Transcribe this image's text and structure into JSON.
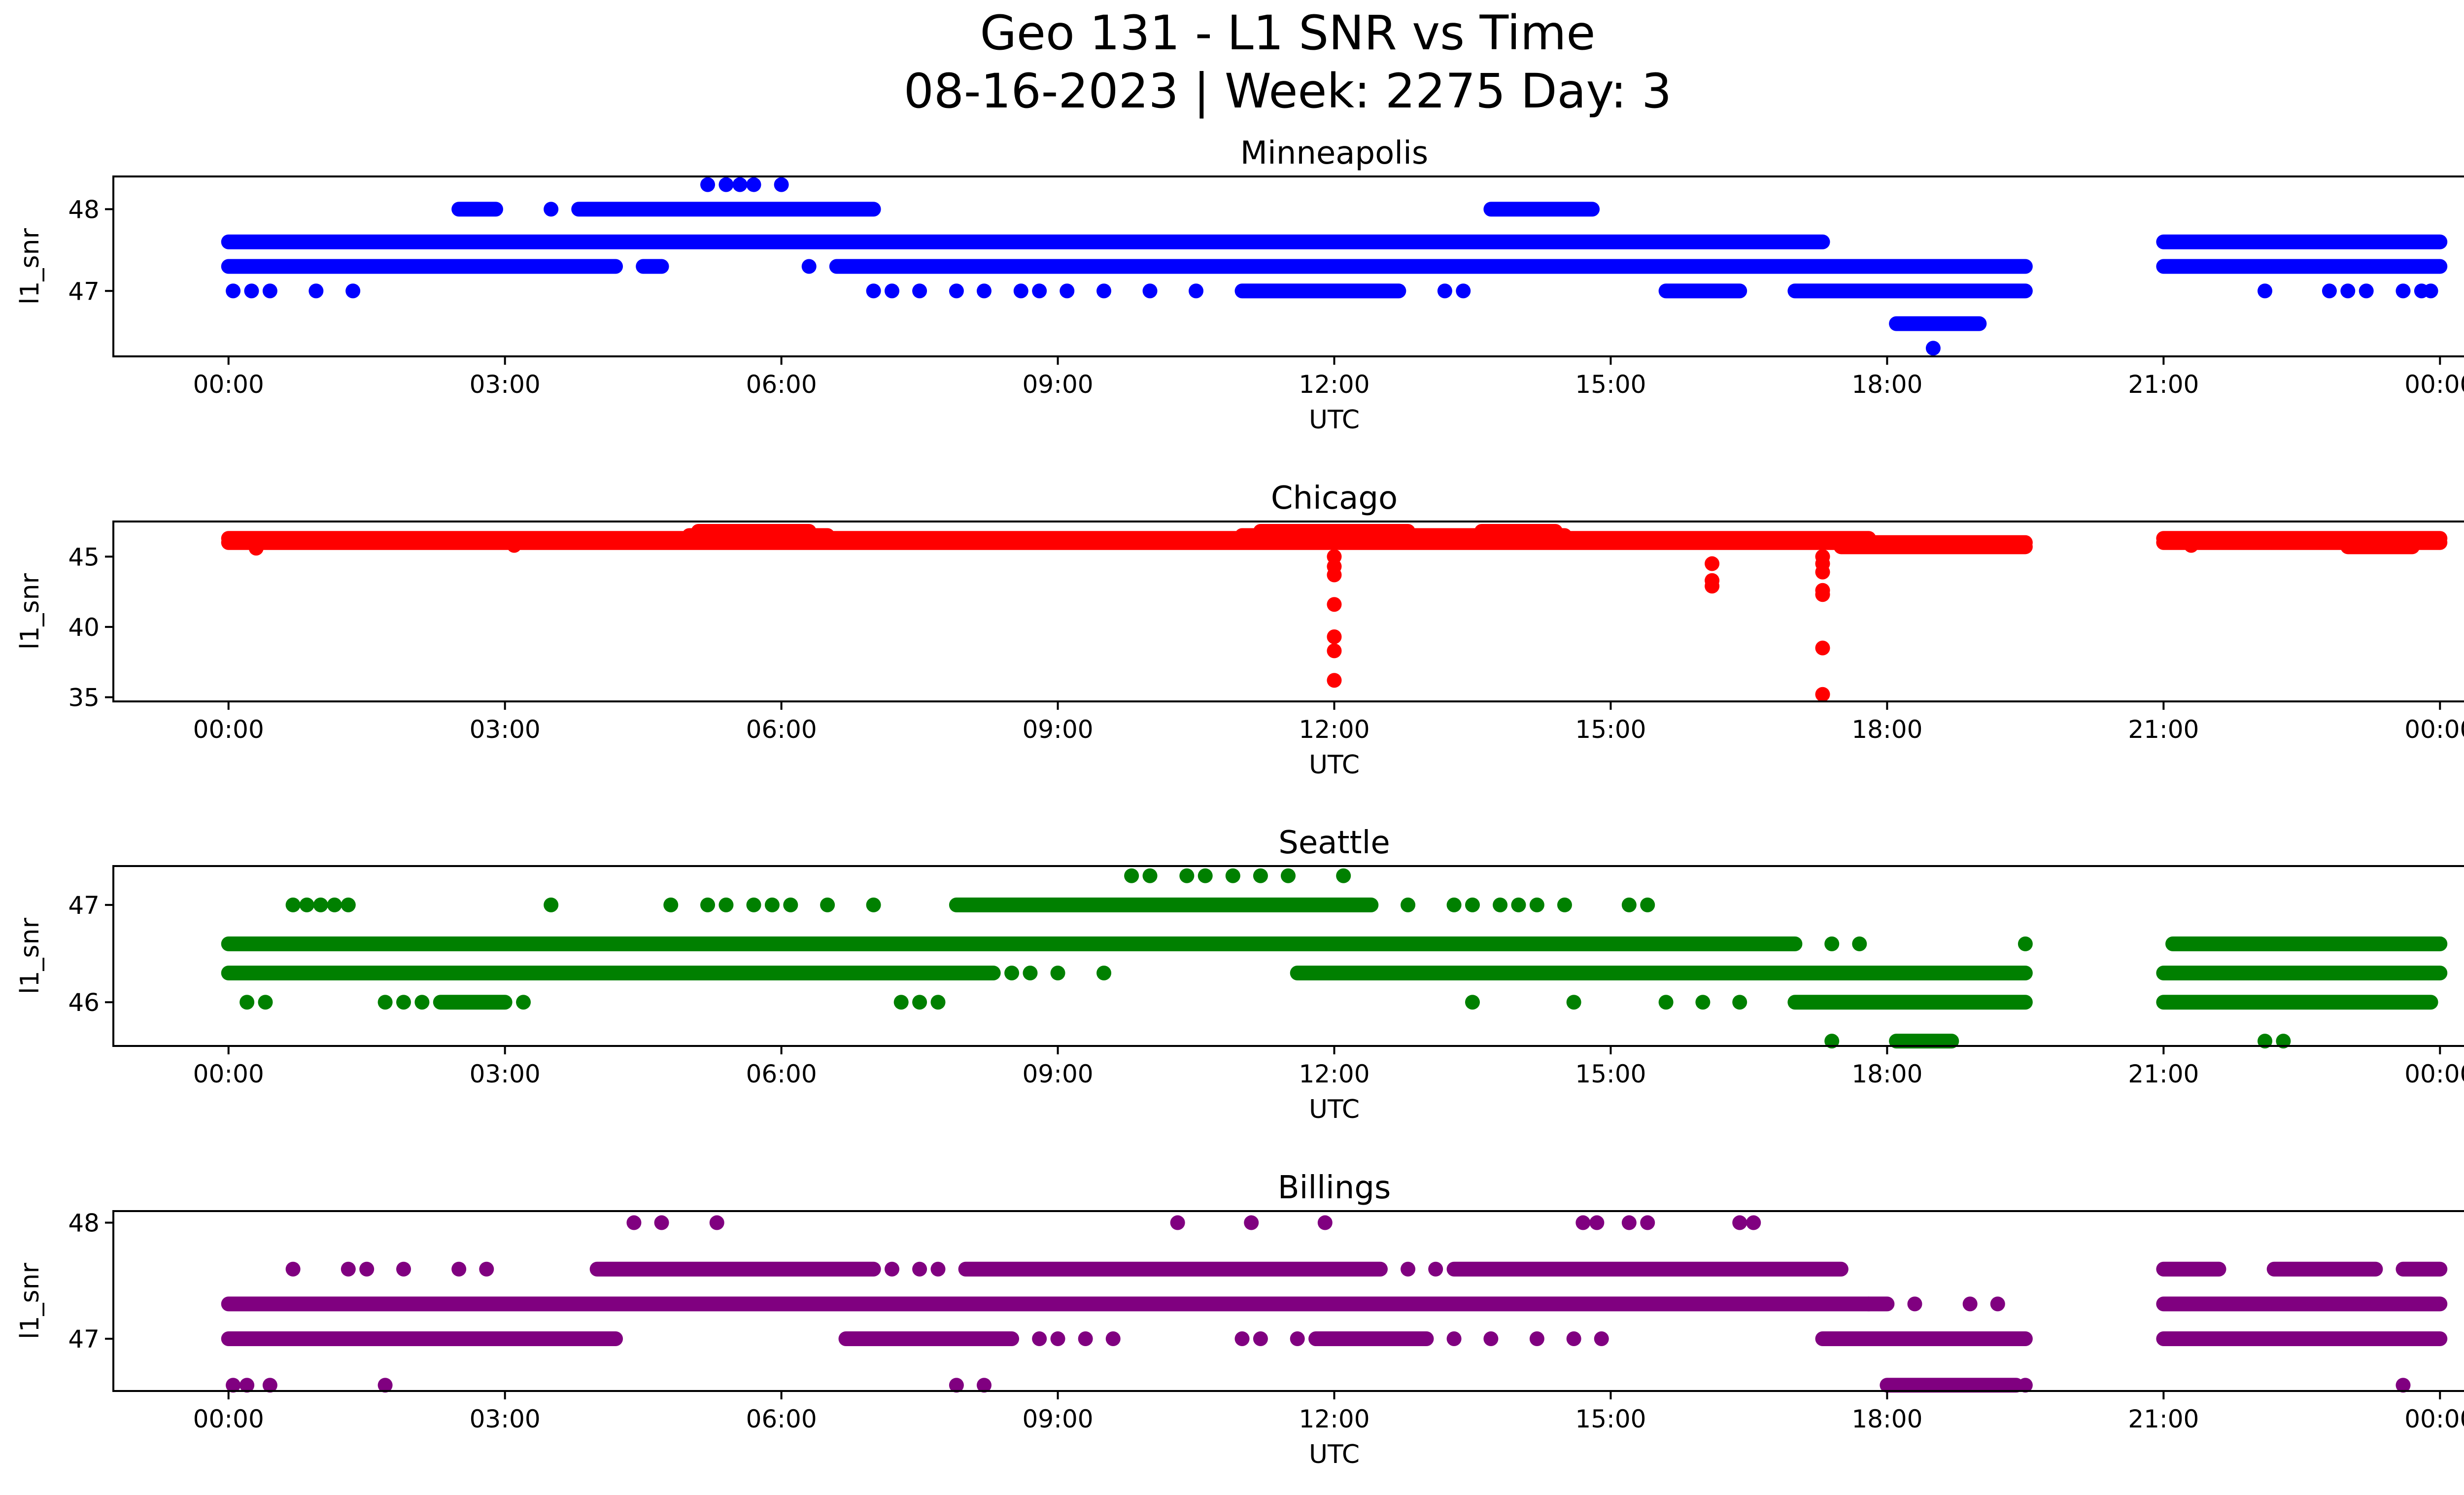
{
  "title_line1": "Geo 131 - L1 SNR vs Time",
  "title_line2": "08-16-2023 | Week: 2275 Day: 3",
  "chart_data": [
    {
      "type": "scatter",
      "title": "Minneapolis",
      "xlabel": "UTC",
      "ylabel": "l1_snr",
      "color": "#0000ff",
      "xlim": [
        -1.25,
        25.25
      ],
      "ylim": [
        46.2,
        48.4
      ],
      "yticks": [
        47,
        48
      ],
      "xticks": [
        "00:00",
        "03:00",
        "06:00",
        "09:00",
        "12:00",
        "15:00",
        "18:00",
        "21:00",
        "00:00"
      ],
      "xtick_values": [
        0,
        3,
        6,
        9,
        12,
        15,
        18,
        21,
        24
      ],
      "bands": [
        {
          "y": 47.6,
          "segments": [
            [
              0,
              17.3
            ],
            [
              21,
              24
            ]
          ]
        },
        {
          "y": 47.3,
          "segments": [
            [
              0,
              4.2
            ],
            [
              4.5,
              4.7
            ],
            [
              6.6,
              19.5
            ],
            [
              21,
              24
            ]
          ]
        },
        {
          "y": 47.0,
          "segments": [
            [
              11.0,
              12.7
            ],
            [
              15.6,
              16.4
            ],
            [
              17.0,
              19.5
            ]
          ]
        },
        {
          "y": 48.0,
          "segments": [
            [
              2.5,
              2.9
            ],
            [
              3.8,
              7.0
            ],
            [
              13.7,
              14.8
            ]
          ]
        },
        {
          "y": 46.6,
          "segments": [
            [
              18.1,
              19.0
            ]
          ]
        }
      ],
      "points": [
        {
          "x": 0.05,
          "y": 47.0
        },
        {
          "x": 0.25,
          "y": 47.0
        },
        {
          "x": 0.45,
          "y": 47.0
        },
        {
          "x": 0.95,
          "y": 47.0
        },
        {
          "x": 1.35,
          "y": 47.0
        },
        {
          "x": 3.5,
          "y": 48.0
        },
        {
          "x": 6.3,
          "y": 47.3
        },
        {
          "x": 7.0,
          "y": 47.0
        },
        {
          "x": 7.2,
          "y": 47.0
        },
        {
          "x": 7.5,
          "y": 47.0
        },
        {
          "x": 7.9,
          "y": 47.0
        },
        {
          "x": 8.2,
          "y": 47.0
        },
        {
          "x": 8.6,
          "y": 47.0
        },
        {
          "x": 8.8,
          "y": 47.0
        },
        {
          "x": 9.1,
          "y": 47.0
        },
        {
          "x": 9.5,
          "y": 47.0
        },
        {
          "x": 10.0,
          "y": 47.0
        },
        {
          "x": 10.5,
          "y": 47.0
        },
        {
          "x": 13.2,
          "y": 47.0
        },
        {
          "x": 13.4,
          "y": 47.0
        },
        {
          "x": 5.2,
          "y": 48.3
        },
        {
          "x": 5.4,
          "y": 48.3
        },
        {
          "x": 5.55,
          "y": 48.3
        },
        {
          "x": 5.7,
          "y": 48.3
        },
        {
          "x": 6.0,
          "y": 48.3
        },
        {
          "x": 18.5,
          "y": 46.3
        },
        {
          "x": 22.1,
          "y": 47.0
        },
        {
          "x": 22.8,
          "y": 47.0
        },
        {
          "x": 23.0,
          "y": 47.0
        },
        {
          "x": 23.2,
          "y": 47.0
        },
        {
          "x": 23.6,
          "y": 47.0
        },
        {
          "x": 23.8,
          "y": 47.0
        },
        {
          "x": 23.9,
          "y": 47.0
        }
      ]
    },
    {
      "type": "scatter",
      "title": "Chicago",
      "xlabel": "UTC",
      "ylabel": "l1_snr",
      "color": "#ff0000",
      "xlim": [
        -1.25,
        25.25
      ],
      "ylim": [
        34.7,
        47.5
      ],
      "yticks": [
        35,
        40,
        45
      ],
      "xticks": [
        "00:00",
        "03:00",
        "06:00",
        "09:00",
        "12:00",
        "15:00",
        "18:00",
        "21:00",
        "00:00"
      ],
      "xtick_values": [
        0,
        3,
        6,
        9,
        12,
        15,
        18,
        21,
        24
      ],
      "bands": [
        {
          "y": 46.5,
          "segments": [
            [
              5.0,
              6.5
            ],
            [
              11.0,
              14.5
            ]
          ]
        },
        {
          "y": 46.3,
          "segments": [
            [
              0,
              17.8
            ],
            [
              21,
              24
            ]
          ]
        },
        {
          "y": 46.0,
          "segments": [
            [
              0,
              19.5
            ],
            [
              21,
              24
            ]
          ]
        },
        {
          "y": 45.7,
          "segments": [
            [
              17.5,
              19.5
            ],
            [
              23.0,
              23.7
            ]
          ]
        },
        {
          "y": 46.8,
          "segments": [
            [
              5.1,
              6.3
            ],
            [
              11.2,
              12.8
            ],
            [
              13.6,
              14.4
            ]
          ]
        }
      ],
      "points": [
        {
          "x": 12.0,
          "y": 45.0
        },
        {
          "x": 12.0,
          "y": 44.3
        },
        {
          "x": 12.0,
          "y": 43.7
        },
        {
          "x": 12.0,
          "y": 41.6
        },
        {
          "x": 12.0,
          "y": 39.3
        },
        {
          "x": 12.0,
          "y": 38.3
        },
        {
          "x": 12.0,
          "y": 36.2
        },
        {
          "x": 16.1,
          "y": 44.5
        },
        {
          "x": 16.1,
          "y": 43.3
        },
        {
          "x": 16.1,
          "y": 42.9
        },
        {
          "x": 17.3,
          "y": 45.0
        },
        {
          "x": 17.3,
          "y": 44.5
        },
        {
          "x": 17.3,
          "y": 43.9
        },
        {
          "x": 17.3,
          "y": 42.6
        },
        {
          "x": 17.3,
          "y": 42.3
        },
        {
          "x": 17.3,
          "y": 38.5
        },
        {
          "x": 17.3,
          "y": 35.2
        },
        {
          "x": 0.3,
          "y": 45.6
        },
        {
          "x": 3.1,
          "y": 45.8
        },
        {
          "x": 21.3,
          "y": 45.8
        }
      ]
    },
    {
      "type": "scatter",
      "title": "Seattle",
      "xlabel": "UTC",
      "ylabel": "l1_snr",
      "color": "#008000",
      "xlim": [
        -1.25,
        25.25
      ],
      "ylim": [
        45.55,
        47.4
      ],
      "yticks": [
        46,
        47
      ],
      "xticks": [
        "00:00",
        "03:00",
        "06:00",
        "09:00",
        "12:00",
        "15:00",
        "18:00",
        "21:00",
        "00:00"
      ],
      "xtick_values": [
        0,
        3,
        6,
        9,
        12,
        15,
        18,
        21,
        24
      ],
      "bands": [
        {
          "y": 46.6,
          "segments": [
            [
              0,
              17.0
            ],
            [
              21.1,
              24
            ]
          ]
        },
        {
          "y": 46.3,
          "segments": [
            [
              0,
              8.3
            ],
            [
              11.6,
              19.5
            ],
            [
              21,
              24
            ]
          ]
        },
        {
          "y": 47.0,
          "segments": [
            [
              7.9,
              12.4
            ]
          ]
        },
        {
          "y": 46.0,
          "segments": [
            [
              2.3,
              3.0
            ],
            [
              17.0,
              19.5
            ],
            [
              21,
              23.9
            ]
          ]
        },
        {
          "y": 45.6,
          "segments": [
            [
              18.1,
              18.7
            ]
          ]
        }
      ],
      "points": [
        {
          "x": 0.7,
          "y": 47.0
        },
        {
          "x": 0.85,
          "y": 47.0
        },
        {
          "x": 1.0,
          "y": 47.0
        },
        {
          "x": 1.15,
          "y": 47.0
        },
        {
          "x": 1.3,
          "y": 47.0
        },
        {
          "x": 3.5,
          "y": 47.0
        },
        {
          "x": 4.8,
          "y": 47.0
        },
        {
          "x": 5.2,
          "y": 47.0
        },
        {
          "x": 5.4,
          "y": 47.0
        },
        {
          "x": 5.7,
          "y": 47.0
        },
        {
          "x": 5.9,
          "y": 47.0
        },
        {
          "x": 6.1,
          "y": 47.0
        },
        {
          "x": 6.5,
          "y": 47.0
        },
        {
          "x": 7.0,
          "y": 47.0
        },
        {
          "x": 12.8,
          "y": 47.0
        },
        {
          "x": 13.3,
          "y": 47.0
        },
        {
          "x": 13.5,
          "y": 47.0
        },
        {
          "x": 13.8,
          "y": 47.0
        },
        {
          "x": 14.0,
          "y": 47.0
        },
        {
          "x": 14.2,
          "y": 47.0
        },
        {
          "x": 14.5,
          "y": 47.0
        },
        {
          "x": 15.2,
          "y": 47.0
        },
        {
          "x": 15.4,
          "y": 47.0
        },
        {
          "x": 9.8,
          "y": 47.3
        },
        {
          "x": 10.0,
          "y": 47.3
        },
        {
          "x": 10.4,
          "y": 47.3
        },
        {
          "x": 10.6,
          "y": 47.3
        },
        {
          "x": 10.9,
          "y": 47.3
        },
        {
          "x": 11.2,
          "y": 47.3
        },
        {
          "x": 11.5,
          "y": 47.3
        },
        {
          "x": 12.1,
          "y": 47.3
        },
        {
          "x": 8.5,
          "y": 46.3
        },
        {
          "x": 8.7,
          "y": 46.3
        },
        {
          "x": 9.0,
          "y": 46.3
        },
        {
          "x": 9.5,
          "y": 46.3
        },
        {
          "x": 0.2,
          "y": 46.0
        },
        {
          "x": 0.4,
          "y": 46.0
        },
        {
          "x": 1.7,
          "y": 46.0
        },
        {
          "x": 1.9,
          "y": 46.0
        },
        {
          "x": 2.1,
          "y": 46.0
        },
        {
          "x": 3.2,
          "y": 46.0
        },
        {
          "x": 7.3,
          "y": 46.0
        },
        {
          "x": 7.5,
          "y": 46.0
        },
        {
          "x": 7.7,
          "y": 46.0
        },
        {
          "x": 13.5,
          "y": 46.0
        },
        {
          "x": 14.6,
          "y": 46.0
        },
        {
          "x": 15.6,
          "y": 46.0
        },
        {
          "x": 16.0,
          "y": 46.0
        },
        {
          "x": 16.4,
          "y": 46.0
        },
        {
          "x": 17.4,
          "y": 45.6
        },
        {
          "x": 17.4,
          "y": 46.6
        },
        {
          "x": 17.7,
          "y": 46.6
        },
        {
          "x": 19.5,
          "y": 46.6
        },
        {
          "x": 22.1,
          "y": 45.6
        },
        {
          "x": 22.3,
          "y": 45.6
        }
      ]
    },
    {
      "type": "scatter",
      "title": "Billings",
      "xlabel": "UTC",
      "ylabel": "l1_snr",
      "color": "#800080",
      "xlim": [
        -1.25,
        25.25
      ],
      "ylim": [
        46.55,
        48.1
      ],
      "yticks": [
        47,
        48
      ],
      "xticks": [
        "00:00",
        "03:00",
        "06:00",
        "09:00",
        "12:00",
        "15:00",
        "18:00",
        "21:00",
        "00:00"
      ],
      "xtick_values": [
        0,
        3,
        6,
        9,
        12,
        15,
        18,
        21,
        24
      ],
      "bands": [
        {
          "y": 47.3,
          "segments": [
            [
              0,
              18.0
            ],
            [
              21,
              24
            ]
          ]
        },
        {
          "y": 47.0,
          "segments": [
            [
              0,
              4.2
            ],
            [
              6.7,
              8.5
            ],
            [
              11.8,
              13.0
            ],
            [
              17.3,
              19.5
            ],
            [
              21,
              24
            ]
          ]
        },
        {
          "y": 47.6,
          "segments": [
            [
              4.0,
              7.0
            ],
            [
              8.0,
              12.5
            ],
            [
              13.3,
              17.5
            ],
            [
              21,
              21.6
            ],
            [
              22.2,
              23.3
            ],
            [
              23.6,
              24
            ]
          ]
        },
        {
          "y": 46.6,
          "segments": [
            [
              18.0,
              19.4
            ]
          ]
        }
      ],
      "points": [
        {
          "x": 0.05,
          "y": 46.6
        },
        {
          "x": 0.2,
          "y": 46.6
        },
        {
          "x": 0.45,
          "y": 46.6
        },
        {
          "x": 1.7,
          "y": 46.6
        },
        {
          "x": 7.9,
          "y": 46.6
        },
        {
          "x": 8.2,
          "y": 46.6
        },
        {
          "x": 19.5,
          "y": 46.6
        },
        {
          "x": 23.6,
          "y": 46.6
        },
        {
          "x": 0.7,
          "y": 47.6
        },
        {
          "x": 1.3,
          "y": 47.6
        },
        {
          "x": 1.5,
          "y": 47.6
        },
        {
          "x": 1.9,
          "y": 47.6
        },
        {
          "x": 2.5,
          "y": 47.6
        },
        {
          "x": 2.8,
          "y": 47.6
        },
        {
          "x": 7.2,
          "y": 47.6
        },
        {
          "x": 7.5,
          "y": 47.6
        },
        {
          "x": 7.7,
          "y": 47.6
        },
        {
          "x": 12.8,
          "y": 47.6
        },
        {
          "x": 13.1,
          "y": 47.6
        },
        {
          "x": 17.8,
          "y": 47.3
        },
        {
          "x": 18.3,
          "y": 47.3
        },
        {
          "x": 18.9,
          "y": 47.3
        },
        {
          "x": 19.2,
          "y": 47.3
        },
        {
          "x": 8.8,
          "y": 47.0
        },
        {
          "x": 9.0,
          "y": 47.0
        },
        {
          "x": 9.3,
          "y": 47.0
        },
        {
          "x": 9.6,
          "y": 47.0
        },
        {
          "x": 11.0,
          "y": 47.0
        },
        {
          "x": 11.2,
          "y": 47.0
        },
        {
          "x": 11.6,
          "y": 47.0
        },
        {
          "x": 13.3,
          "y": 47.0
        },
        {
          "x": 13.7,
          "y": 47.0
        },
        {
          "x": 14.2,
          "y": 47.0
        },
        {
          "x": 14.6,
          "y": 47.0
        },
        {
          "x": 14.9,
          "y": 47.0
        },
        {
          "x": 4.4,
          "y": 48.0
        },
        {
          "x": 4.7,
          "y": 48.0
        },
        {
          "x": 5.3,
          "y": 48.0
        },
        {
          "x": 10.3,
          "y": 48.0
        },
        {
          "x": 11.1,
          "y": 48.0
        },
        {
          "x": 11.9,
          "y": 48.0
        },
        {
          "x": 14.7,
          "y": 48.0
        },
        {
          "x": 14.85,
          "y": 48.0
        },
        {
          "x": 15.2,
          "y": 48.0
        },
        {
          "x": 15.4,
          "y": 48.0
        },
        {
          "x": 16.4,
          "y": 48.0
        },
        {
          "x": 16.55,
          "y": 48.0
        }
      ]
    }
  ]
}
